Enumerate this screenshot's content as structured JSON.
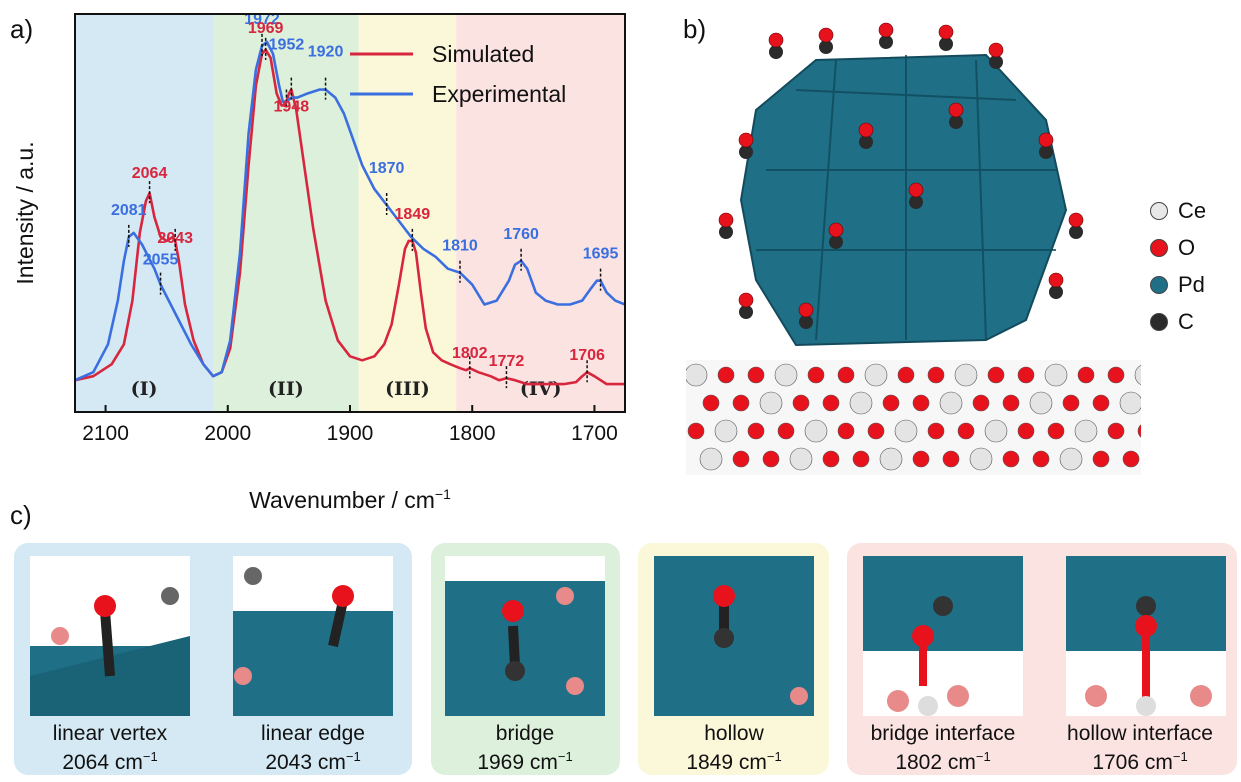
{
  "panels": {
    "a": "a)",
    "b": "b)",
    "c": "c)"
  },
  "chart_data": {
    "type": "line",
    "xlabel": "Wavenumber / cm",
    "xlabel_sup": "−1",
    "ylabel": "Intensity / a.u.",
    "xlim": [
      2125,
      1675
    ],
    "ylim": [
      0,
      1.0
    ],
    "x_ticks": [
      2100,
      2000,
      1900,
      1800,
      1700
    ],
    "regions": [
      {
        "label": "(I)",
        "from": 2125,
        "to": 2012,
        "color": "#d4e9f4"
      },
      {
        "label": "(II)",
        "from": 2012,
        "to": 1893,
        "color": "#dcf0dc"
      },
      {
        "label": "(III)",
        "from": 1893,
        "to": 1813,
        "color": "#fbf7d9"
      },
      {
        "label": "(IV)",
        "from": 1813,
        "to": 1675,
        "color": "#fbe3e1"
      }
    ],
    "series": [
      {
        "name": "Simulated",
        "color": "#d7263d",
        "x": [
          2125,
          2110,
          2095,
          2085,
          2078,
          2072,
          2067,
          2064,
          2060,
          2055,
          2050,
          2045,
          2043,
          2040,
          2035,
          2028,
          2020,
          2012,
          2005,
          1998,
          1990,
          1983,
          1977,
          1972,
          1969,
          1965,
          1960,
          1956,
          1953,
          1950,
          1948,
          1944,
          1938,
          1930,
          1920,
          1910,
          1900,
          1890,
          1880,
          1872,
          1866,
          1860,
          1855,
          1852,
          1849,
          1846,
          1842,
          1838,
          1832,
          1825,
          1818,
          1810,
          1805,
          1802,
          1795,
          1785,
          1778,
          1772,
          1765,
          1755,
          1745,
          1735,
          1725,
          1715,
          1710,
          1706,
          1700,
          1690,
          1675
        ],
        "y": [
          0.08,
          0.09,
          0.12,
          0.17,
          0.28,
          0.45,
          0.53,
          0.55,
          0.49,
          0.44,
          0.43,
          0.44,
          0.43,
          0.38,
          0.27,
          0.18,
          0.12,
          0.09,
          0.1,
          0.16,
          0.35,
          0.62,
          0.82,
          0.9,
          0.91,
          0.89,
          0.8,
          0.77,
          0.77,
          0.8,
          0.81,
          0.76,
          0.63,
          0.46,
          0.28,
          0.18,
          0.14,
          0.13,
          0.14,
          0.17,
          0.22,
          0.32,
          0.41,
          0.43,
          0.43,
          0.4,
          0.3,
          0.21,
          0.15,
          0.13,
          0.12,
          0.11,
          0.105,
          0.11,
          0.1,
          0.09,
          0.08,
          0.085,
          0.08,
          0.07,
          0.07,
          0.07,
          0.07,
          0.075,
          0.09,
          0.1,
          0.09,
          0.07,
          0.07
        ]
      },
      {
        "name": "Experimental",
        "color": "#3b6fe0",
        "x": [
          2125,
          2110,
          2098,
          2090,
          2085,
          2081,
          2077,
          2070,
          2060,
          2055,
          2050,
          2040,
          2030,
          2020,
          2012,
          2005,
          1998,
          1990,
          1983,
          1977,
          1972,
          1968,
          1963,
          1958,
          1955,
          1952,
          1948,
          1943,
          1935,
          1925,
          1920,
          1912,
          1905,
          1898,
          1890,
          1880,
          1870,
          1860,
          1850,
          1840,
          1830,
          1820,
          1810,
          1800,
          1790,
          1780,
          1770,
          1765,
          1760,
          1755,
          1748,
          1740,
          1730,
          1720,
          1710,
          1703,
          1698,
          1695,
          1690,
          1683,
          1675
        ],
        "y": [
          0.08,
          0.1,
          0.17,
          0.28,
          0.38,
          0.44,
          0.45,
          0.42,
          0.36,
          0.32,
          0.29,
          0.23,
          0.17,
          0.12,
          0.09,
          0.1,
          0.18,
          0.4,
          0.7,
          0.86,
          0.92,
          0.93,
          0.9,
          0.82,
          0.78,
          0.78,
          0.79,
          0.79,
          0.8,
          0.81,
          0.81,
          0.79,
          0.75,
          0.69,
          0.62,
          0.56,
          0.52,
          0.48,
          0.44,
          0.41,
          0.39,
          0.36,
          0.35,
          0.32,
          0.27,
          0.28,
          0.33,
          0.37,
          0.38,
          0.36,
          0.3,
          0.28,
          0.27,
          0.27,
          0.28,
          0.31,
          0.33,
          0.33,
          0.3,
          0.28,
          0.27
        ]
      }
    ],
    "peak_labels": [
      {
        "text": "2081",
        "series": "Experimental",
        "x": 2081,
        "dy": -22
      },
      {
        "text": "2055",
        "series": "Experimental",
        "x": 2055,
        "dy": -20
      },
      {
        "text": "1972",
        "series": "Experimental",
        "x": 1972,
        "dy": -22
      },
      {
        "text": "1952",
        "series": "Experimental",
        "x": 1952,
        "dy": -52
      },
      {
        "text": "1920",
        "series": "Experimental",
        "x": 1920,
        "dy": -33
      },
      {
        "text": "1870",
        "series": "Experimental",
        "x": 1870,
        "dy": -32
      },
      {
        "text": "1810",
        "series": "Experimental",
        "x": 1810,
        "dy": -22
      },
      {
        "text": "1760",
        "series": "Experimental",
        "x": 1760,
        "dy": -22
      },
      {
        "text": "1695",
        "series": "Experimental",
        "x": 1695,
        "dy": -22
      },
      {
        "text": "2064",
        "series": "Simulated",
        "x": 2064,
        "dy": -15
      },
      {
        "text": "2043",
        "series": "Simulated",
        "x": 2043,
        "dy": 2
      },
      {
        "text": "1969",
        "series": "Simulated",
        "x": 1969,
        "dy": -17
      },
      {
        "text": "1948",
        "series": "Simulated",
        "x": 1948,
        "dy": 22
      },
      {
        "text": "1849",
        "series": "Simulated",
        "x": 1849,
        "dy": -22
      },
      {
        "text": "1802",
        "series": "Simulated",
        "x": 1802,
        "dy": -10
      },
      {
        "text": "1772",
        "series": "Simulated",
        "x": 1772,
        "dy": -12
      },
      {
        "text": "1706",
        "series": "Simulated",
        "x": 1706,
        "dy": -12
      }
    ],
    "legend": "top-right"
  },
  "structure_legend": [
    {
      "label": "Ce",
      "color": "#e8e8e8"
    },
    {
      "label": "O",
      "color": "#e8121c"
    },
    {
      "label": "Pd",
      "color": "#1f6f86"
    },
    {
      "label": "C",
      "color": "#2b2b2b"
    }
  ],
  "adsorption_sites": [
    {
      "name": "linear vertex",
      "freq": "2064 cm",
      "sup": "−1"
    },
    {
      "name": "linear edge",
      "freq": "2043 cm",
      "sup": "−1"
    },
    {
      "name": "bridge",
      "freq": "1969 cm",
      "sup": "−1"
    },
    {
      "name": "hollow",
      "freq": "1849 cm",
      "sup": "−1"
    },
    {
      "name": "bridge interface",
      "freq": "1802 cm",
      "sup": "−1"
    },
    {
      "name": "hollow interface",
      "freq": "1706 cm",
      "sup": "−1"
    }
  ]
}
